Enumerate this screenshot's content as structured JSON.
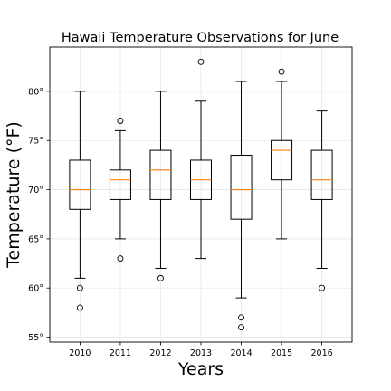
{
  "chart_data": {
    "type": "boxplot",
    "title": "Hawaii Temperature Observations for June",
    "xlabel": "Years",
    "ylabel": "Temperature (°F)",
    "ylim": [
      54.5,
      84.5
    ],
    "yticks": [
      55,
      60,
      65,
      70,
      75,
      80
    ],
    "ytick_suffix": "°",
    "grid": true,
    "categories": [
      "2010",
      "2011",
      "2012",
      "2013",
      "2014",
      "2015",
      "2016"
    ],
    "boxes": [
      {
        "year": "2010",
        "whisker_low": 61,
        "q1": 68,
        "median": 70,
        "q3": 73,
        "whisker_high": 80,
        "fliers": [
          60,
          58
        ]
      },
      {
        "year": "2011",
        "whisker_low": 65,
        "q1": 69,
        "median": 71,
        "q3": 72,
        "whisker_high": 76,
        "fliers": [
          77,
          63
        ]
      },
      {
        "year": "2012",
        "whisker_low": 62,
        "q1": 69,
        "median": 72,
        "q3": 74,
        "whisker_high": 80,
        "fliers": [
          61
        ]
      },
      {
        "year": "2013",
        "whisker_low": 63,
        "q1": 69,
        "median": 71,
        "q3": 73,
        "whisker_high": 79,
        "fliers": [
          83
        ]
      },
      {
        "year": "2014",
        "whisker_low": 59,
        "q1": 67,
        "median": 70,
        "q3": 73.5,
        "whisker_high": 81,
        "fliers": [
          57,
          56
        ]
      },
      {
        "year": "2015",
        "whisker_low": 65,
        "q1": 71,
        "median": 74,
        "q3": 75,
        "whisker_high": 81,
        "fliers": [
          82
        ]
      },
      {
        "year": "2016",
        "whisker_low": 62,
        "q1": 69,
        "median": 71,
        "q3": 74,
        "whisker_high": 78,
        "fliers": [
          60
        ]
      }
    ],
    "colors": {
      "median": "#ff7f0e",
      "box": "#000000",
      "grid": "#e6e6e6"
    }
  }
}
